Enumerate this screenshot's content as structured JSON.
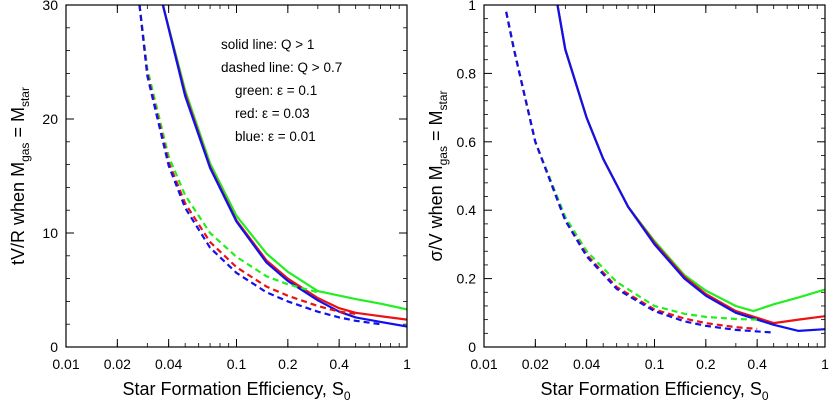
{
  "chart_data": [
    {
      "type": "line",
      "xlabel": {
        "main": "Star Formation Efficiency, S",
        "sub": "0"
      },
      "ylabel": {
        "main": "tV/R when M",
        "sub1": "gas",
        "mid": " = M",
        "sub2": "star"
      },
      "xscale": "log",
      "xlim": [
        0.01,
        1
      ],
      "ylim": [
        0,
        30
      ],
      "xticks": [
        0.01,
        0.02,
        0.04,
        0.1,
        0.2,
        0.4,
        1
      ],
      "xtick_labels": [
        "0.01",
        "0.02",
        "0.04",
        "0.1",
        "0.2",
        "0.4",
        "1"
      ],
      "yticks": [
        0,
        10,
        20,
        30
      ],
      "ytick_labels": [
        "0",
        "10",
        "20",
        "30"
      ],
      "annotations": [
        "solid line: Q > 1",
        "dashed line: Q > 0.7",
        "green: ε = 0.1",
        "red: ε = 0.03",
        "blue: ε = 0.01"
      ],
      "series": [
        {
          "color": "#22ee22",
          "style": "solid",
          "x": [
            0.037,
            0.05,
            0.07,
            0.1,
            0.15,
            0.2,
            0.3,
            0.5,
            0.7,
            1.0
          ],
          "y": [
            30,
            22.5,
            16.1,
            11.5,
            8.2,
            6.6,
            4.9,
            4.2,
            3.8,
            3.3
          ]
        },
        {
          "color": "#ee1111",
          "style": "solid",
          "x": [
            0.037,
            0.05,
            0.07,
            0.1,
            0.15,
            0.2,
            0.3,
            0.4,
            0.5,
            0.7,
            1.0
          ],
          "y": [
            30,
            22.2,
            15.8,
            11.1,
            7.6,
            6.0,
            4.3,
            3.4,
            3.0,
            2.7,
            2.4
          ]
        },
        {
          "color": "#1111ee",
          "style": "solid",
          "x": [
            0.037,
            0.05,
            0.07,
            0.1,
            0.15,
            0.2,
            0.3,
            0.4,
            0.5,
            0.7,
            1.0
          ],
          "y": [
            30,
            22.0,
            15.7,
            11.0,
            7.4,
            5.8,
            4.1,
            3.1,
            2.6,
            2.2,
            1.8
          ]
        },
        {
          "color": "#22ee22",
          "style": "dashed",
          "x": [
            0.027,
            0.03,
            0.04,
            0.05,
            0.07,
            0.1,
            0.15,
            0.2,
            0.3
          ],
          "y": [
            30,
            24.4,
            16.7,
            13.3,
            10.0,
            7.9,
            6.2,
            5.5,
            4.8
          ]
        },
        {
          "color": "#ee1111",
          "style": "dashed",
          "x": [
            0.027,
            0.03,
            0.04,
            0.05,
            0.07,
            0.1,
            0.15,
            0.2,
            0.3,
            0.4,
            0.5
          ],
          "y": [
            30,
            24.0,
            16.2,
            12.6,
            9.2,
            7.0,
            5.3,
            4.5,
            3.6,
            3.1,
            2.9
          ]
        },
        {
          "color": "#1111ee",
          "style": "dashed",
          "x": [
            0.027,
            0.03,
            0.04,
            0.05,
            0.07,
            0.1,
            0.15,
            0.2,
            0.3,
            0.4,
            0.5,
            0.7
          ],
          "y": [
            30,
            23.8,
            15.9,
            12.2,
            8.7,
            6.5,
            4.8,
            4.0,
            3.1,
            2.6,
            2.3,
            2.0
          ]
        }
      ]
    },
    {
      "type": "line",
      "xlabel": {
        "main": "Star Formation Efficiency, S",
        "sub": "0"
      },
      "ylabel": {
        "main": "σ/V when M",
        "sub1": "gas",
        "mid": " = M",
        "sub2": "star"
      },
      "xscale": "log",
      "xlim": [
        0.01,
        1
      ],
      "ylim": [
        0,
        1
      ],
      "xticks": [
        0.01,
        0.02,
        0.04,
        0.1,
        0.2,
        0.4,
        1
      ],
      "xtick_labels": [
        "0.01",
        "0.02",
        "0.04",
        "0.1",
        "0.2",
        "0.4",
        "1"
      ],
      "yticks": [
        0,
        0.2,
        0.4,
        0.6,
        0.8,
        1
      ],
      "ytick_labels": [
        "0",
        "0.2",
        "0.4",
        "0.6",
        "0.8",
        "1"
      ],
      "series": [
        {
          "color": "#22ee22",
          "style": "solid",
          "x": [
            0.027,
            0.03,
            0.04,
            0.05,
            0.07,
            0.1,
            0.15,
            0.2,
            0.3,
            0.38,
            0.5,
            0.7,
            1.0
          ],
          "y": [
            1.0,
            0.87,
            0.67,
            0.55,
            0.41,
            0.31,
            0.21,
            0.165,
            0.12,
            0.105,
            0.125,
            0.145,
            0.168
          ]
        },
        {
          "color": "#ee1111",
          "style": "solid",
          "x": [
            0.027,
            0.03,
            0.04,
            0.05,
            0.07,
            0.1,
            0.15,
            0.2,
            0.3,
            0.5,
            0.7,
            1.0
          ],
          "y": [
            1.0,
            0.87,
            0.67,
            0.55,
            0.41,
            0.305,
            0.205,
            0.155,
            0.105,
            0.07,
            0.08,
            0.09
          ]
        },
        {
          "color": "#1111ee",
          "style": "solid",
          "x": [
            0.027,
            0.03,
            0.04,
            0.05,
            0.07,
            0.1,
            0.15,
            0.2,
            0.3,
            0.5,
            0.7,
            1.0
          ],
          "y": [
            1.0,
            0.87,
            0.67,
            0.55,
            0.41,
            0.3,
            0.2,
            0.15,
            0.1,
            0.065,
            0.047,
            0.052
          ]
        },
        {
          "color": "#22ee22",
          "style": "dashed",
          "x": [
            0.0135,
            0.015,
            0.02,
            0.03,
            0.04,
            0.06,
            0.1,
            0.15,
            0.2,
            0.3,
            0.4
          ],
          "y": [
            0.98,
            0.87,
            0.6,
            0.38,
            0.28,
            0.19,
            0.12,
            0.097,
            0.088,
            0.082,
            0.08
          ]
        },
        {
          "color": "#ee1111",
          "style": "dashed",
          "x": [
            0.0135,
            0.015,
            0.02,
            0.03,
            0.04,
            0.06,
            0.1,
            0.15,
            0.2,
            0.3,
            0.4
          ],
          "y": [
            0.98,
            0.87,
            0.6,
            0.37,
            0.27,
            0.175,
            0.11,
            0.083,
            0.07,
            0.058,
            0.053
          ]
        },
        {
          "color": "#1111ee",
          "style": "dashed",
          "x": [
            0.0135,
            0.015,
            0.02,
            0.03,
            0.04,
            0.06,
            0.1,
            0.15,
            0.2,
            0.3,
            0.5
          ],
          "y": [
            0.98,
            0.87,
            0.6,
            0.37,
            0.265,
            0.17,
            0.105,
            0.075,
            0.062,
            0.05,
            0.042
          ]
        }
      ]
    }
  ]
}
